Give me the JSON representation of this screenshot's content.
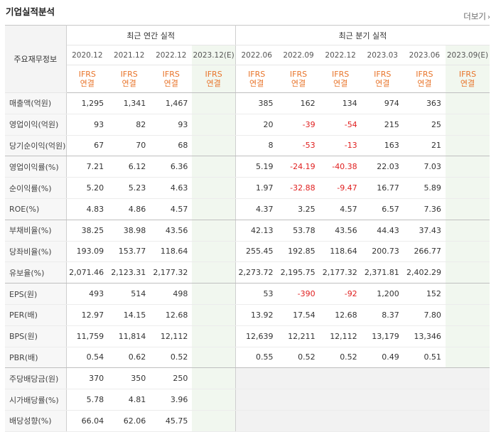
{
  "header": {
    "title": "기업실적분석",
    "more": "더보기",
    "more_icon": "chevron-right-icon"
  },
  "table": {
    "label_header": "주요재무정보",
    "group_annual": "최근 연간 실적",
    "group_quarter": "최근 분기 실적",
    "periods": [
      "2020.12",
      "2021.12",
      "2022.12",
      "2023.12(E)",
      "2022.06",
      "2022.09",
      "2022.12",
      "2023.03",
      "2023.06",
      "2023.09(E)"
    ],
    "ifrs_top": "IFRS",
    "ifrs_bottom": "연결",
    "rows": [
      {
        "label": "매출액(억원)",
        "v": [
          "1,295",
          "1,341",
          "1,467",
          "",
          "385",
          "162",
          "134",
          "974",
          "363",
          ""
        ]
      },
      {
        "label": "영업이익(억원)",
        "v": [
          "93",
          "82",
          "93",
          "",
          "20",
          "-39",
          "-54",
          "215",
          "25",
          ""
        ]
      },
      {
        "label": "당기순이익(억원)",
        "v": [
          "67",
          "70",
          "68",
          "",
          "8",
          "-53",
          "-13",
          "163",
          "21",
          ""
        ]
      },
      {
        "label": "영업이익률(%)",
        "v": [
          "7.21",
          "6.12",
          "6.36",
          "",
          "5.19",
          "-24.19",
          "-40.38",
          "22.03",
          "7.03",
          ""
        ]
      },
      {
        "label": "순이익률(%)",
        "v": [
          "5.20",
          "5.23",
          "4.63",
          "",
          "1.97",
          "-32.88",
          "-9.47",
          "16.77",
          "5.89",
          ""
        ]
      },
      {
        "label": "ROE(%)",
        "v": [
          "4.83",
          "4.86",
          "4.57",
          "",
          "4.37",
          "3.25",
          "4.57",
          "6.57",
          "7.36",
          ""
        ]
      },
      {
        "label": "부채비율(%)",
        "v": [
          "38.25",
          "38.98",
          "43.56",
          "",
          "42.13",
          "53.78",
          "43.56",
          "44.43",
          "37.43",
          ""
        ]
      },
      {
        "label": "당좌비율(%)",
        "v": [
          "193.09",
          "153.77",
          "118.64",
          "",
          "255.45",
          "192.85",
          "118.64",
          "200.73",
          "266.77",
          ""
        ]
      },
      {
        "label": "유보율(%)",
        "v": [
          "2,071.46",
          "2,123.31",
          "2,177.32",
          "",
          "2,273.72",
          "2,195.75",
          "2,177.32",
          "2,371.81",
          "2,402.29",
          ""
        ]
      },
      {
        "label": "EPS(원)",
        "v": [
          "493",
          "514",
          "498",
          "",
          "53",
          "-390",
          "-92",
          "1,200",
          "152",
          ""
        ]
      },
      {
        "label": "PER(배)",
        "v": [
          "12.97",
          "14.15",
          "12.68",
          "",
          "13.92",
          "17.54",
          "12.68",
          "8.37",
          "7.80",
          ""
        ]
      },
      {
        "label": "BPS(원)",
        "v": [
          "11,759",
          "11,814",
          "12,112",
          "",
          "12,639",
          "12,211",
          "12,112",
          "13,179",
          "13,346",
          ""
        ]
      },
      {
        "label": "PBR(배)",
        "v": [
          "0.54",
          "0.62",
          "0.52",
          "",
          "0.55",
          "0.52",
          "0.52",
          "0.49",
          "0.51",
          ""
        ]
      },
      {
        "label": "주당배당금(원)",
        "v": [
          "370",
          "350",
          "250",
          "",
          "",
          "",
          "",
          "",
          "",
          ""
        ]
      },
      {
        "label": "시가배당률(%)",
        "v": [
          "5.78",
          "4.81",
          "3.96",
          "",
          "",
          "",
          "",
          "",
          "",
          ""
        ]
      },
      {
        "label": "배당성향(%)",
        "v": [
          "66.04",
          "62.06",
          "45.75",
          "",
          "",
          "",
          "",
          "",
          "",
          ""
        ]
      }
    ]
  },
  "colors": {
    "ifrs": "#e8742a",
    "negative": "#e02020",
    "estimate_bg": "#f1f7ef"
  }
}
